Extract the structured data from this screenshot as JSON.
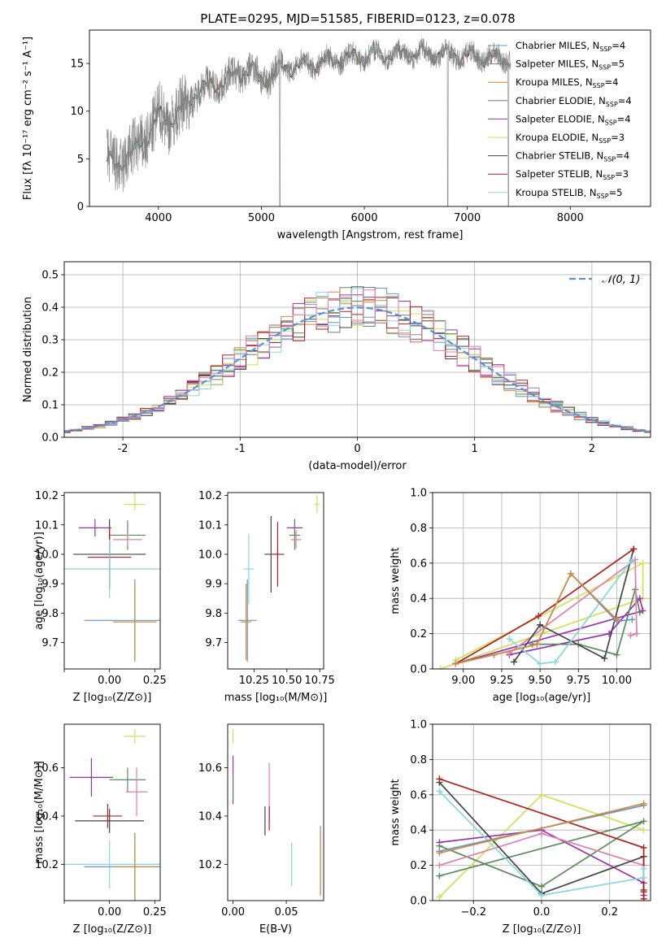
{
  "title": "PLATE=0295, MJD=51585, FIBERID=0123, z=0.078",
  "chart_data": [
    {
      "id": "spectrum",
      "type": "line",
      "xlabel": "wavelength [Angstrom, rest frame]",
      "ylabel": "Flux [fλ 10⁻¹⁷ erg cm⁻² s⁻¹ A⁻¹]",
      "xlim": [
        3330,
        8780
      ],
      "ylim": [
        0,
        18.5
      ],
      "xticks": [
        4000,
        5000,
        6000,
        7000,
        8000
      ],
      "yticks": [
        0,
        5,
        10,
        15
      ],
      "continuum": [
        [
          3500,
          5
        ],
        [
          3600,
          4
        ],
        [
          3700,
          5.5
        ],
        [
          3800,
          6
        ],
        [
          3900,
          7.5
        ],
        [
          4000,
          9.5
        ],
        [
          4100,
          9
        ],
        [
          4200,
          10
        ],
        [
          4300,
          11
        ],
        [
          4400,
          12.5
        ],
        [
          4500,
          12.5
        ],
        [
          4700,
          13.5
        ],
        [
          4900,
          14.5
        ],
        [
          5000,
          13.2
        ],
        [
          5200,
          14.5
        ],
        [
          5500,
          15
        ],
        [
          5800,
          15.5
        ],
        [
          6000,
          15.8
        ],
        [
          6300,
          16
        ],
        [
          6600,
          16
        ],
        [
          7000,
          15.8
        ],
        [
          7400,
          15.5
        ]
      ],
      "legend": [
        {
          "label": "Chabrier MILES, N_SSP=4",
          "color": "#6495cd"
        },
        {
          "label": "Salpeter MILES, N_SSP=5",
          "color": "#7a7a7a"
        },
        {
          "label": "Kroupa MILES, N_SSP=4",
          "color": "#d28a3c"
        },
        {
          "label": "Chabrier ELODIE, N_SSP=4",
          "color": "#5b8a5b"
        },
        {
          "label": "Salpeter ELODIE, N_SSP=4",
          "color": "#9a32b0"
        },
        {
          "label": "Kroupa ELODIE, N_SSP=3",
          "color": "#cfe05a"
        },
        {
          "label": "Chabrier STELIB, N_SSP=4",
          "color": "#444444"
        },
        {
          "label": "Salpeter STELIB, N_SSP=3",
          "color": "#b0201e"
        },
        {
          "label": "Kroupa STELIB, N_SSP=5",
          "color": "#86d8dc"
        }
      ]
    },
    {
      "id": "residuals",
      "type": "histogram",
      "xlabel": "(data-model)/error",
      "ylabel": "Normed distribution",
      "xlim": [
        -2.5,
        2.5
      ],
      "ylim": [
        0,
        0.54
      ],
      "xticks": [
        -2,
        -1,
        0,
        1,
        2
      ],
      "yticks": [
        0.0,
        0.1,
        0.2,
        0.3,
        0.4,
        0.5
      ],
      "grid": true,
      "legend": "𝒩(0, 1)",
      "legend_position": "top-right",
      "bin_width": 0.1,
      "reference_curve": "gaussian mean 0 sigma 1 (dashed)"
    },
    {
      "id": "age-vs-Z",
      "type": "errorbar",
      "xlabel": "Z [log₁₀(Z/Z⊙)]",
      "ylabel": "age  [log₁₀(age/yr)]",
      "xlim": [
        -0.25,
        0.28
      ],
      "ylim": [
        9.61,
        10.21
      ],
      "xticks": [
        -0.25,
        0.0,
        0.25
      ],
      "xticklabels": [
        "",
        "0.00",
        "0.25"
      ],
      "yticks": [
        9.7,
        9.8,
        9.9,
        10.0,
        10.1,
        10.2
      ],
      "points": [
        {
          "x": 0.14,
          "y": 10.17,
          "xerr": 0.06,
          "yerr": [
            0.02,
            0.04
          ],
          "color": "#cfe05a"
        },
        {
          "x": -0.08,
          "y": 10.09,
          "xerr": 0.09,
          "yerr": 0.03,
          "color": "#9a32b0"
        },
        {
          "x": 0.1,
          "y": 10.065,
          "xerr": 0.1,
          "yerr": 0.05,
          "color": "#5b8a5b"
        },
        {
          "x": 0.1,
          "y": 10.05,
          "xerr": 0.08,
          "yerr": 0.02,
          "color": "#e07fa8"
        },
        {
          "x": 0.0,
          "y": 10.0,
          "xerr": 0.2,
          "yerr": 0.12,
          "color": "#444444"
        },
        {
          "x": 0.0,
          "y": 9.99,
          "xerr": 0.12,
          "yerr": 0.1,
          "color": "#b0201e"
        },
        {
          "x": 0.0,
          "y": 9.95,
          "xerr": 0.3,
          "yerr": 0.1,
          "color": "#86d8dc"
        },
        {
          "x": 0.14,
          "y": 9.775,
          "xerr": 0.28,
          "yerr": 0.14,
          "color": "#6495cd"
        },
        {
          "x": 0.14,
          "y": 9.77,
          "xerr": 0.12,
          "yerr": 0.13,
          "color": "#d28a3c"
        }
      ]
    },
    {
      "id": "age-vs-mass",
      "type": "errorbar",
      "xlabel": "mass [log₁₀(M/M⊙)]",
      "ylabel": "",
      "xlim": [
        10.05,
        10.78
      ],
      "ylim": [
        9.61,
        10.21
      ],
      "xticks": [
        10.25,
        10.5,
        10.75
      ],
      "yticks": [
        9.7,
        9.8,
        9.9,
        10.0,
        10.1,
        10.2
      ],
      "points": [
        {
          "x": 10.73,
          "y": 10.17,
          "xerr": 0.02,
          "yerr": 0.03,
          "color": "#cfe05a"
        },
        {
          "x": 10.56,
          "y": 10.09,
          "xerr": 0.06,
          "yerr": 0.03,
          "color": "#9a32b0"
        },
        {
          "x": 10.56,
          "y": 10.065,
          "xerr": 0.04,
          "yerr": 0.05,
          "color": "#5b8a5b"
        },
        {
          "x": 10.57,
          "y": 10.05,
          "xerr": 0.04,
          "yerr": 0.03,
          "color": "#e07fa8"
        },
        {
          "x": 10.38,
          "y": 10.0,
          "xerr": 0.05,
          "yerr": 0.13,
          "color": "#444444"
        },
        {
          "x": 10.43,
          "y": 10.0,
          "xerr": 0.05,
          "yerr": 0.11,
          "color": "#b0201e"
        },
        {
          "x": 10.21,
          "y": 9.95,
          "xerr": 0.04,
          "yerr": 0.12,
          "color": "#86d8dc"
        },
        {
          "x": 10.2,
          "y": 9.775,
          "xerr": 0.07,
          "yerr": 0.14,
          "color": "#6495cd"
        },
        {
          "x": 10.19,
          "y": 9.77,
          "xerr": 0.04,
          "yerr": 0.13,
          "color": "#d28a3c"
        }
      ]
    },
    {
      "id": "weight-vs-age",
      "type": "line",
      "xlabel": "age  [log₁₀(age/yr)]",
      "ylabel": "mass weight",
      "xlim": [
        8.8,
        10.22
      ],
      "ylim": [
        0.0,
        1.0
      ],
      "xticks": [
        9.0,
        9.25,
        9.5,
        9.75,
        10.0
      ],
      "yticks": [
        0.0,
        0.2,
        0.4,
        0.6,
        0.8,
        1.0
      ],
      "grid": true,
      "series": [
        {
          "color": "#cfe05a",
          "points": [
            [
              8.95,
              0.05
            ],
            [
              10.17,
              0.6
            ],
            [
              10.17,
              0.4
            ],
            [
              8.85,
              0.0
            ]
          ]
        },
        {
          "color": "#9a32b0",
          "points": [
            [
              9.3,
              0.08
            ],
            [
              9.95,
              0.2
            ],
            [
              10.15,
              0.4
            ],
            [
              10.17,
              0.33
            ],
            [
              8.95,
              0.03
            ]
          ]
        },
        {
          "color": "#5b8a5b",
          "points": [
            [
              9.45,
              0.14
            ],
            [
              9.75,
              0.14
            ],
            [
              10.0,
              0.08
            ],
            [
              10.12,
              0.45
            ],
            [
              10.15,
              0.32
            ]
          ]
        },
        {
          "color": "#e07fa8",
          "points": [
            [
              9.3,
              0.09
            ],
            [
              10.12,
              0.62
            ],
            [
              10.13,
              0.2
            ],
            [
              10.09,
              0.19
            ]
          ]
        },
        {
          "color": "#444444",
          "points": [
            [
              9.33,
              0.04
            ],
            [
              9.5,
              0.25
            ],
            [
              9.92,
              0.06
            ],
            [
              10.11,
              0.68
            ]
          ]
        },
        {
          "color": "#b0201e",
          "points": [
            [
              8.95,
              0.03
            ],
            [
              9.49,
              0.3
            ],
            [
              10.11,
              0.68
            ]
          ]
        },
        {
          "color": "#86d8dc",
          "points": [
            [
              9.3,
              0.17
            ],
            [
              9.5,
              0.03
            ],
            [
              9.6,
              0.04
            ],
            [
              10.1,
              0.62
            ]
          ]
        },
        {
          "color": "#6495cd",
          "points": [
            [
              8.95,
              0.03
            ],
            [
              9.2,
              0.08
            ],
            [
              9.48,
              0.14
            ],
            [
              9.7,
              0.54
            ],
            [
              10.0,
              0.27
            ],
            [
              10.1,
              0.28
            ]
          ]
        },
        {
          "color": "#d28a3c",
          "points": [
            [
              8.95,
              0.03
            ],
            [
              9.2,
              0.08
            ],
            [
              9.48,
              0.14
            ],
            [
              9.7,
              0.54
            ],
            [
              10.0,
              0.28
            ]
          ]
        }
      ]
    },
    {
      "id": "mass-vs-Z",
      "type": "errorbar",
      "xlabel": "Z [log₁₀(Z/Z⊙)]",
      "ylabel": "mass [log₁₀(M/M⊙)]",
      "xlim": [
        -0.25,
        0.28
      ],
      "ylim": [
        10.05,
        10.78
      ],
      "xticks": [
        -0.25,
        0.0,
        0.25
      ],
      "xticklabels": [
        "",
        "0.00",
        "0.25"
      ],
      "yticks": [
        10.2,
        10.4,
        10.6
      ],
      "points": [
        {
          "x": 0.14,
          "y": 10.73,
          "xerr": 0.06,
          "yerr": 0.03,
          "color": "#cfe05a"
        },
        {
          "x": -0.1,
          "y": 10.56,
          "xerr": 0.12,
          "yerr": 0.08,
          "color": "#9a32b0"
        },
        {
          "x": 0.1,
          "y": 10.55,
          "xerr": 0.1,
          "yerr": 0.05,
          "color": "#5b8a5b"
        },
        {
          "x": 0.15,
          "y": 10.5,
          "xerr": 0.06,
          "yerr": 0.1,
          "color": "#e07fa8"
        },
        {
          "x": 0.0,
          "y": 10.38,
          "xerr": 0.19,
          "yerr": 0.05,
          "color": "#444444"
        },
        {
          "x": -0.01,
          "y": 10.4,
          "xerr": 0.08,
          "yerr": 0.05,
          "color": "#b0201e"
        },
        {
          "x": 0.0,
          "y": 10.2,
          "xerr": 0.3,
          "yerr": 0.1,
          "color": "#86d8dc"
        },
        {
          "x": 0.14,
          "y": 10.19,
          "xerr": 0.28,
          "yerr": 0.14,
          "color": "#6495cd"
        },
        {
          "x": 0.14,
          "y": 10.19,
          "xerr": 0.12,
          "yerr": 0.14,
          "color": "#d28a3c"
        }
      ]
    },
    {
      "id": "mass-vs-ebv",
      "type": "errorbar",
      "xlabel": "E(B-V)",
      "ylabel": "",
      "xlim": [
        -0.005,
        0.085
      ],
      "ylim": [
        10.05,
        10.78
      ],
      "xticks": [
        0.0,
        0.05
      ],
      "yticks": [
        10.2,
        10.4,
        10.6
      ],
      "points": [
        {
          "x": 0.0,
          "y": 10.73,
          "xerr": 0,
          "yerr": 0.03,
          "color": "#cfe05a"
        },
        {
          "x": 0.0,
          "y": 10.55,
          "xerr": 0,
          "yerr": 0.1,
          "color": "#9a32b0"
        },
        {
          "x": 0.0,
          "y": 10.52,
          "xerr": 0,
          "yerr": 0.05,
          "color": "#5b8a5b"
        },
        {
          "x": 0.034,
          "y": 10.5,
          "xerr": 0,
          "yerr": 0.12,
          "color": "#e07fa8"
        },
        {
          "x": 0.03,
          "y": 10.38,
          "xerr": 0,
          "yerr": 0.06,
          "color": "#444444"
        },
        {
          "x": 0.034,
          "y": 10.39,
          "xerr": 0,
          "yerr": 0.05,
          "color": "#b0201e"
        },
        {
          "x": 0.055,
          "y": 10.2,
          "xerr": 0,
          "yerr": 0.09,
          "color": "#86d8dc"
        },
        {
          "x": 0.082,
          "y": 10.22,
          "xerr": 0,
          "yerr": 0.14,
          "color": "#6495cd"
        },
        {
          "x": 0.082,
          "y": 10.2,
          "xerr": 0,
          "yerr": 0.13,
          "color": "#d28a3c"
        }
      ]
    },
    {
      "id": "weight-vs-Z",
      "type": "line",
      "xlabel": "Z [log₁₀(Z/Z⊙)]",
      "ylabel": "mass weight",
      "xlim": [
        -0.32,
        0.32
      ],
      "ylim": [
        0.0,
        1.0
      ],
      "xticks": [
        -0.2,
        0.0,
        0.2
      ],
      "yticks": [
        0.0,
        0.2,
        0.4,
        0.6,
        0.8,
        1.0
      ],
      "grid": true,
      "series": [
        {
          "color": "#cfe05a",
          "points": [
            [
              -0.3,
              0.02
            ],
            [
              0.0,
              0.6
            ],
            [
              0.3,
              0.4
            ]
          ]
        },
        {
          "color": "#9a32b0",
          "points": [
            [
              -0.3,
              0.33
            ],
            [
              0.0,
              0.4
            ],
            [
              0.3,
              0.1
            ],
            [
              0.3,
              0.03
            ]
          ]
        },
        {
          "color": "#5b8a5b",
          "points": [
            [
              -0.3,
              0.31
            ],
            [
              0.0,
              0.08
            ],
            [
              0.3,
              0.45
            ],
            [
              -0.3,
              0.14
            ]
          ]
        },
        {
          "color": "#e07fa8",
          "points": [
            [
              -0.3,
              0.2
            ],
            [
              0.0,
              0.38
            ],
            [
              0.3,
              0.2
            ]
          ]
        },
        {
          "color": "#444444",
          "points": [
            [
              -0.3,
              0.67
            ],
            [
              0.0,
              0.04
            ],
            [
              0.3,
              0.25
            ],
            [
              0.3,
              0.06
            ]
          ]
        },
        {
          "color": "#b0201e",
          "points": [
            [
              -0.3,
              0.69
            ],
            [
              0.3,
              0.3
            ],
            [
              0.3,
              0.05
            ],
            [
              0.3,
              0.01
            ]
          ]
        },
        {
          "color": "#86d8dc",
          "points": [
            [
              -0.3,
              0.62
            ],
            [
              0.0,
              0.03
            ],
            [
              0.3,
              0.13
            ],
            [
              0.3,
              0.18
            ]
          ]
        },
        {
          "color": "#6495cd",
          "points": [
            [
              -0.3,
              0.28
            ],
            [
              0.3,
              0.54
            ]
          ]
        },
        {
          "color": "#d28a3c",
          "points": [
            [
              -0.3,
              0.27
            ],
            [
              0.3,
              0.55
            ]
          ]
        }
      ]
    }
  ]
}
